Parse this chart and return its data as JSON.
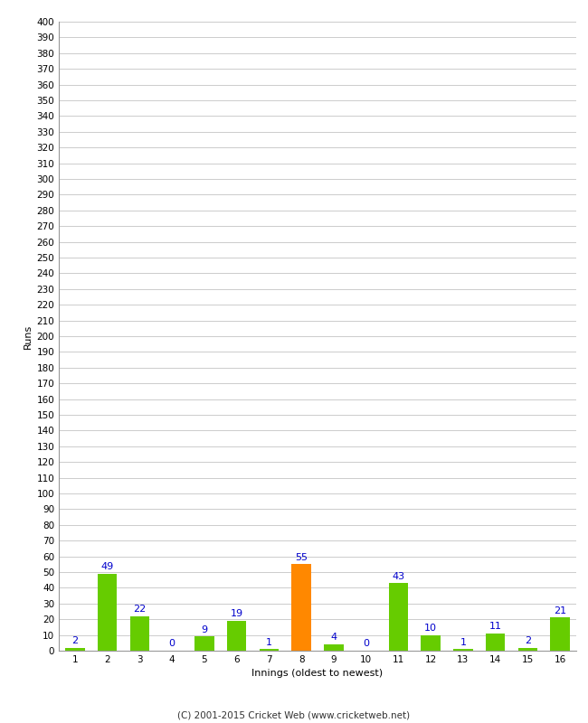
{
  "innings": [
    1,
    2,
    3,
    4,
    5,
    6,
    7,
    8,
    9,
    10,
    11,
    12,
    13,
    14,
    15,
    16
  ],
  "runs": [
    2,
    49,
    22,
    0,
    9,
    19,
    1,
    55,
    4,
    0,
    43,
    10,
    1,
    11,
    2,
    21
  ],
  "bar_colors": [
    "#66cc00",
    "#66cc00",
    "#66cc00",
    "#66cc00",
    "#66cc00",
    "#66cc00",
    "#66cc00",
    "#ff8800",
    "#66cc00",
    "#66cc00",
    "#66cc00",
    "#66cc00",
    "#66cc00",
    "#66cc00",
    "#66cc00",
    "#66cc00"
  ],
  "xlabel": "Innings (oldest to newest)",
  "ylabel": "Runs",
  "ylim": [
    0,
    400
  ],
  "yticks": [
    0,
    10,
    20,
    30,
    40,
    50,
    60,
    70,
    80,
    90,
    100,
    110,
    120,
    130,
    140,
    150,
    160,
    170,
    180,
    190,
    200,
    210,
    220,
    230,
    240,
    250,
    260,
    270,
    280,
    290,
    300,
    310,
    320,
    330,
    340,
    350,
    360,
    370,
    380,
    390,
    400
  ],
  "footer": "(C) 2001-2015 Cricket Web (www.cricketweb.net)",
  "background_color": "#ffffff",
  "grid_color": "#cccccc",
  "label_color": "#0000cc",
  "bar_width": 0.6,
  "tick_fontsize": 7.5,
  "label_fontsize": 8,
  "ylabel_fontsize": 8
}
